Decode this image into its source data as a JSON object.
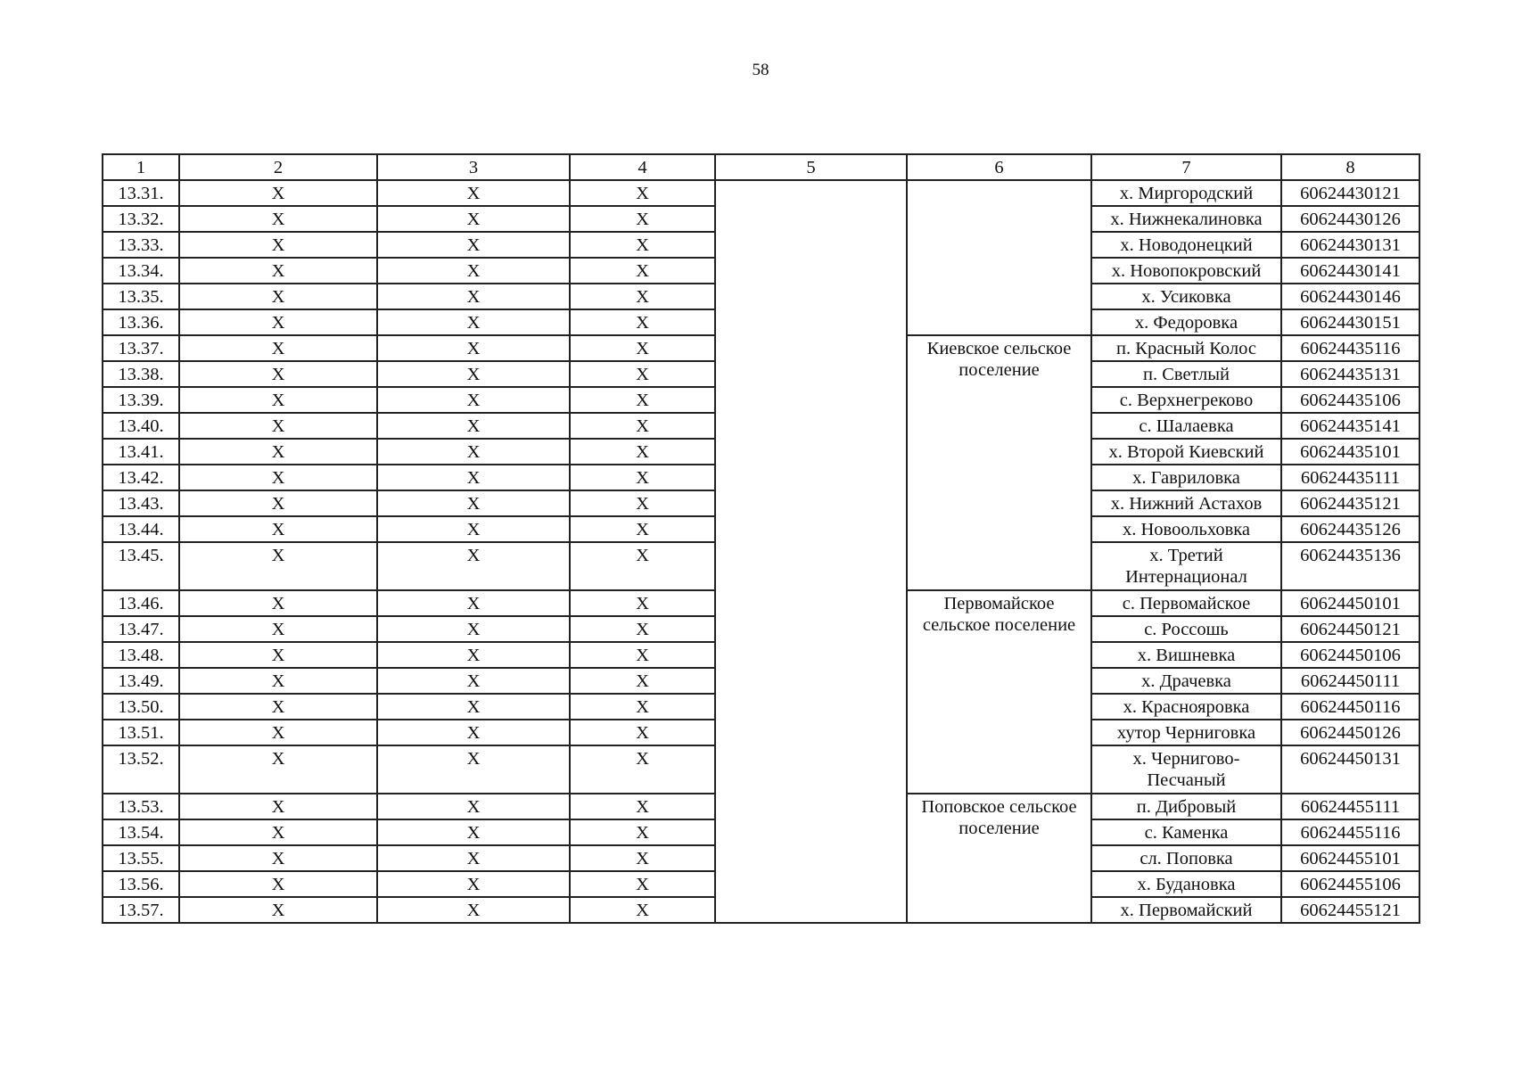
{
  "page_number": "58",
  "header": [
    "1",
    "2",
    "3",
    "4",
    "5",
    "6",
    "7",
    "8"
  ],
  "groups": [
    {
      "settlement": "",
      "rows": [
        {
          "num": "13.31.",
          "c2": "X",
          "c3": "X",
          "c4": "X",
          "place": "х. Миргородский",
          "code": "60624430121"
        },
        {
          "num": "13.32.",
          "c2": "X",
          "c3": "X",
          "c4": "X",
          "place": "х. Нижнекалиновка",
          "code": "60624430126"
        },
        {
          "num": "13.33.",
          "c2": "X",
          "c3": "X",
          "c4": "X",
          "place": "х. Новодонецкий",
          "code": "60624430131"
        },
        {
          "num": "13.34.",
          "c2": "X",
          "c3": "X",
          "c4": "X",
          "place": "х. Новопокровский",
          "code": "60624430141"
        },
        {
          "num": "13.35.",
          "c2": "X",
          "c3": "X",
          "c4": "X",
          "place": "х. Усиковка",
          "code": "60624430146"
        },
        {
          "num": "13.36.",
          "c2": "X",
          "c3": "X",
          "c4": "X",
          "place": "х. Федоровка",
          "code": "60624430151"
        }
      ]
    },
    {
      "settlement": "Киевское сельское поселение",
      "rows": [
        {
          "num": "13.37.",
          "c2": "X",
          "c3": "X",
          "c4": "X",
          "place": "п. Красный Колос",
          "code": "60624435116"
        },
        {
          "num": "13.38.",
          "c2": "X",
          "c3": "X",
          "c4": "X",
          "place": "п. Светлый",
          "code": "60624435131"
        },
        {
          "num": "13.39.",
          "c2": "X",
          "c3": "X",
          "c4": "X",
          "place": "с. Верхнегреково",
          "code": "60624435106"
        },
        {
          "num": "13.40.",
          "c2": "X",
          "c3": "X",
          "c4": "X",
          "place": "с. Шалаевка",
          "code": "60624435141"
        },
        {
          "num": "13.41.",
          "c2": "X",
          "c3": "X",
          "c4": "X",
          "place": "х. Второй Киевский",
          "code": "60624435101"
        },
        {
          "num": "13.42.",
          "c2": "X",
          "c3": "X",
          "c4": "X",
          "place": "х. Гавриловка",
          "code": "60624435111"
        },
        {
          "num": "13.43.",
          "c2": "X",
          "c3": "X",
          "c4": "X",
          "place": "х. Нижний Астахов",
          "code": "60624435121"
        },
        {
          "num": "13.44.",
          "c2": "X",
          "c3": "X",
          "c4": "X",
          "place": "х. Новоольховка",
          "code": "60624435126"
        },
        {
          "num": "13.45.",
          "c2": "X",
          "c3": "X",
          "c4": "X",
          "place": "х. Третий Интернационал",
          "code": "60624435136"
        }
      ]
    },
    {
      "settlement": "Первомайское сельское поселение",
      "rows": [
        {
          "num": "13.46.",
          "c2": "X",
          "c3": "X",
          "c4": "X",
          "place": "с. Первомайское",
          "code": "60624450101"
        },
        {
          "num": "13.47.",
          "c2": "X",
          "c3": "X",
          "c4": "X",
          "place": "с. Россошь",
          "code": "60624450121"
        },
        {
          "num": "13.48.",
          "c2": "X",
          "c3": "X",
          "c4": "X",
          "place": "х. Вишневка",
          "code": "60624450106"
        },
        {
          "num": "13.49.",
          "c2": "X",
          "c3": "X",
          "c4": "X",
          "place": "х. Драчевка",
          "code": "60624450111"
        },
        {
          "num": "13.50.",
          "c2": "X",
          "c3": "X",
          "c4": "X",
          "place": "х. Краснояровка",
          "code": "60624450116"
        },
        {
          "num": "13.51.",
          "c2": "X",
          "c3": "X",
          "c4": "X",
          "place": "хутор Черниговка",
          "code": "60624450126"
        },
        {
          "num": "13.52.",
          "c2": "X",
          "c3": "X",
          "c4": "X",
          "place": "х. Чернигово-Песчаный",
          "code": "60624450131"
        }
      ]
    },
    {
      "settlement": "Поповское сельское поселение",
      "rows": [
        {
          "num": "13.53.",
          "c2": "X",
          "c3": "X",
          "c4": "X",
          "place": "п. Дибровый",
          "code": "60624455111"
        },
        {
          "num": "13.54.",
          "c2": "X",
          "c3": "X",
          "c4": "X",
          "place": "с. Каменка",
          "code": "60624455116"
        },
        {
          "num": "13.55.",
          "c2": "X",
          "c3": "X",
          "c4": "X",
          "place": "сл. Поповка",
          "code": "60624455101"
        },
        {
          "num": "13.56.",
          "c2": "X",
          "c3": "X",
          "c4": "X",
          "place": "х. Будановка",
          "code": "60624455106"
        },
        {
          "num": "13.57.",
          "c2": "X",
          "c3": "X",
          "c4": "X",
          "place": "х. Первомайский",
          "code": "60624455121"
        }
      ]
    }
  ]
}
